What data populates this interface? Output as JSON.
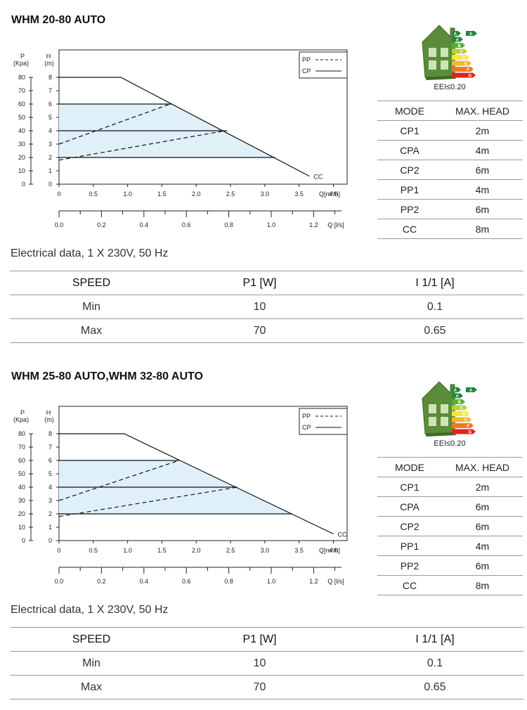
{
  "sections": [
    {
      "title": "WHM 20-80 AUTO",
      "eei": "EEI≤0.20",
      "energy_label": {
        "letters": [
          "A",
          "A",
          "B",
          "C",
          "D",
          "E",
          "F",
          "G"
        ],
        "colors": [
          "#1a8a3a",
          "#1a8a3a",
          "#56b030",
          "#b5d334",
          "#f5e932",
          "#f7b52c",
          "#ef7a24",
          "#e2231a"
        ]
      },
      "modes": {
        "headers": [
          "MODE",
          "MAX. HEAD"
        ],
        "rows": [
          [
            "CP1",
            "2m"
          ],
          [
            "CPA",
            "4m"
          ],
          [
            "CP2",
            "6m"
          ],
          [
            "PP1",
            "4m"
          ],
          [
            "PP2",
            "6m"
          ],
          [
            "CC",
            "8m"
          ]
        ]
      },
      "electrical": {
        "label": "Electrical data, 1 X 230V, 50 Hz",
        "headers": [
          "SPEED",
          "P1 [W]",
          "I 1/1 [A]"
        ],
        "rows": [
          [
            "Min",
            "10",
            "0.1"
          ],
          [
            "Max",
            "70",
            "0.65"
          ]
        ]
      },
      "chart_data": {
        "type": "line",
        "p_label_1": "P",
        "p_label_2": "(Kpa)",
        "h_label_1": "H",
        "h_label_2": "(m)",
        "p_ticks": [
          "0",
          "10",
          "20",
          "30",
          "40",
          "50",
          "60",
          "70",
          "80"
        ],
        "h_ticks": [
          "0",
          "1",
          "2",
          "3",
          "4",
          "5",
          "6",
          "7",
          "8"
        ],
        "q_ticks": [
          "0",
          "0.5",
          "1.0",
          "1.5",
          "2.0",
          "2.5",
          "3.0",
          "3.5",
          "4.0"
        ],
        "q_label": "Q[m³/h]",
        "qs_ticks": [
          "0.0",
          "0.2",
          "0.4",
          "0.6",
          "0.8",
          "1.0",
          "1.2"
        ],
        "qs_label": "Q  [l/s]",
        "x_max": 4.0,
        "y_max": 8,
        "legend": {
          "pp": "PP",
          "cp": "CP"
        },
        "cc_label": "CC",
        "series": [
          {
            "name": "CC",
            "style": "solid",
            "points": [
              [
                0,
                8
              ],
              [
                0.9,
                8
              ],
              [
                3.65,
                0.6
              ]
            ]
          },
          {
            "name": "CP",
            "style": "solid",
            "points": [
              [
                0,
                6
              ],
              [
                1.65,
                6
              ]
            ]
          },
          {
            "name": "CP",
            "style": "solid",
            "points": [
              [
                0,
                4
              ],
              [
                2.45,
                4
              ]
            ]
          },
          {
            "name": "CP",
            "style": "solid",
            "points": [
              [
                0,
                2
              ],
              [
                3.15,
                2
              ]
            ]
          },
          {
            "name": "PP",
            "style": "dashed",
            "points": [
              [
                0,
                3
              ],
              [
                1.62,
                6
              ]
            ]
          },
          {
            "name": "PP",
            "style": "dashed",
            "points": [
              [
                0,
                1.8
              ],
              [
                2.42,
                4
              ]
            ]
          }
        ],
        "fill_regions": [
          {
            "y_top": 6,
            "y_bottom": 2
          }
        ]
      }
    },
    {
      "title": "WHM 25-80 AUTO,WHM 32-80 AUTO",
      "eei": "EEI≤0.20",
      "energy_label": {
        "letters": [
          "A",
          "A",
          "B",
          "C",
          "D",
          "E",
          "F",
          "G"
        ],
        "colors": [
          "#1a8a3a",
          "#1a8a3a",
          "#56b030",
          "#b5d334",
          "#f5e932",
          "#f7b52c",
          "#ef7a24",
          "#e2231a"
        ]
      },
      "modes": {
        "headers": [
          "MODE",
          "MAX. HEAD"
        ],
        "rows": [
          [
            "CP1",
            "2m"
          ],
          [
            "CPA",
            "6m"
          ],
          [
            "CP2",
            "6m"
          ],
          [
            "PP1",
            "4m"
          ],
          [
            "PP2",
            "6m"
          ],
          [
            "CC",
            "8m"
          ]
        ]
      },
      "electrical": {
        "label": "Electrical data, 1 X 230V, 50 Hz",
        "headers": [
          "SPEED",
          "P1 [W]",
          "I 1/1 [A]"
        ],
        "rows": [
          [
            "Min",
            "10",
            "0.1"
          ],
          [
            "Max",
            "70",
            "0.65"
          ]
        ]
      },
      "chart_data": {
        "type": "line",
        "p_label_1": "P",
        "p_label_2": "(Kpa)",
        "h_label_1": "H",
        "h_label_2": "(m)",
        "p_ticks": [
          "0",
          "10",
          "20",
          "30",
          "40",
          "50",
          "60",
          "70",
          "80"
        ],
        "h_ticks": [
          "0",
          "1",
          "2",
          "3",
          "4",
          "5",
          "6",
          "7",
          "8"
        ],
        "q_ticks": [
          "0",
          "0.5",
          "1.0",
          "1.5",
          "2.0",
          "2.5",
          "3.0",
          "3.5",
          "4.0"
        ],
        "q_label": "Q[m³/h]",
        "qs_ticks": [
          "0.0",
          "0.2",
          "0.4",
          "0.6",
          "0.8",
          "1.0",
          "1.2"
        ],
        "qs_label": "Q  [l/s]",
        "x_max": 4.0,
        "y_max": 8,
        "legend": {
          "pp": "PP",
          "cp": "CP"
        },
        "cc_label": "CC",
        "series": [
          {
            "name": "CC",
            "style": "solid",
            "points": [
              [
                0,
                8
              ],
              [
                0.95,
                8
              ],
              [
                4.0,
                0.5
              ]
            ]
          },
          {
            "name": "CP",
            "style": "solid",
            "points": [
              [
                0,
                6
              ],
              [
                1.75,
                6
              ]
            ]
          },
          {
            "name": "CP",
            "style": "solid",
            "points": [
              [
                0,
                4
              ],
              [
                2.6,
                4
              ]
            ]
          },
          {
            "name": "CP",
            "style": "solid",
            "points": [
              [
                0,
                2
              ],
              [
                3.4,
                2
              ]
            ]
          },
          {
            "name": "PP",
            "style": "dashed",
            "points": [
              [
                0,
                3
              ],
              [
                1.75,
                6
              ]
            ]
          },
          {
            "name": "PP",
            "style": "dashed",
            "points": [
              [
                0,
                1.8
              ],
              [
                2.6,
                4
              ]
            ]
          }
        ],
        "fill_regions": [
          {
            "y_top": 6,
            "y_bottom": 2
          }
        ]
      }
    }
  ]
}
